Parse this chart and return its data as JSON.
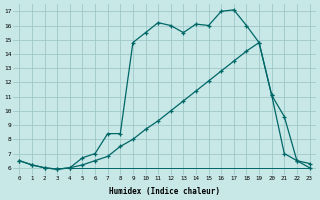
{
  "background_color": "#c8e8e8",
  "grid_color": "#a0c8c8",
  "line_color": "#006666",
  "xlabel": "Humidex (Indice chaleur)",
  "xlim": [
    -0.5,
    23.5
  ],
  "ylim": [
    5.5,
    17.5
  ],
  "yticks": [
    6,
    7,
    8,
    9,
    10,
    11,
    12,
    13,
    14,
    15,
    16,
    17
  ],
  "xticks": [
    0,
    1,
    2,
    3,
    4,
    5,
    6,
    7,
    8,
    9,
    10,
    11,
    12,
    13,
    14,
    15,
    16,
    17,
    18,
    19,
    20,
    21,
    22,
    23
  ],
  "line1_x": [
    0,
    1,
    2,
    3,
    4,
    5,
    6,
    7,
    8,
    9,
    10,
    11,
    12,
    13,
    14,
    15,
    16,
    17,
    18,
    19,
    20,
    21,
    22,
    23
  ],
  "line1_y": [
    6.5,
    6.2,
    6.0,
    5.9,
    6.0,
    6.7,
    7.0,
    8.4,
    8.4,
    14.8,
    15.5,
    16.2,
    16.0,
    15.5,
    16.1,
    16.0,
    17.0,
    17.1,
    16.0,
    14.8,
    11.1,
    7.0,
    6.5,
    6.3
  ],
  "line2_x": [
    0,
    1,
    2,
    3,
    4,
    5,
    6,
    7,
    8,
    9,
    10,
    11,
    12,
    13,
    14,
    15,
    16,
    17,
    18,
    19,
    20,
    21,
    22,
    23
  ],
  "line2_y": [
    6.5,
    6.2,
    6.0,
    5.9,
    6.0,
    6.2,
    6.5,
    6.8,
    7.5,
    8.0,
    8.7,
    9.3,
    10.0,
    10.7,
    11.4,
    12.1,
    12.8,
    13.5,
    14.2,
    14.8,
    11.1,
    9.6,
    6.5,
    6.0
  ],
  "line3_x": [
    3,
    23
  ],
  "line3_y": [
    6.0,
    6.0
  ],
  "marker_line1_x": [
    0,
    1,
    2,
    3,
    5,
    6,
    7,
    8,
    9,
    10,
    11,
    12,
    13,
    14,
    15,
    16,
    17,
    18,
    19,
    20,
    21,
    22,
    23
  ],
  "marker_line2_x": [
    0,
    1,
    2,
    3,
    5,
    6,
    7,
    8,
    9,
    10,
    11,
    12,
    13,
    14,
    15,
    16,
    17,
    18,
    19,
    20,
    21,
    22,
    23
  ]
}
